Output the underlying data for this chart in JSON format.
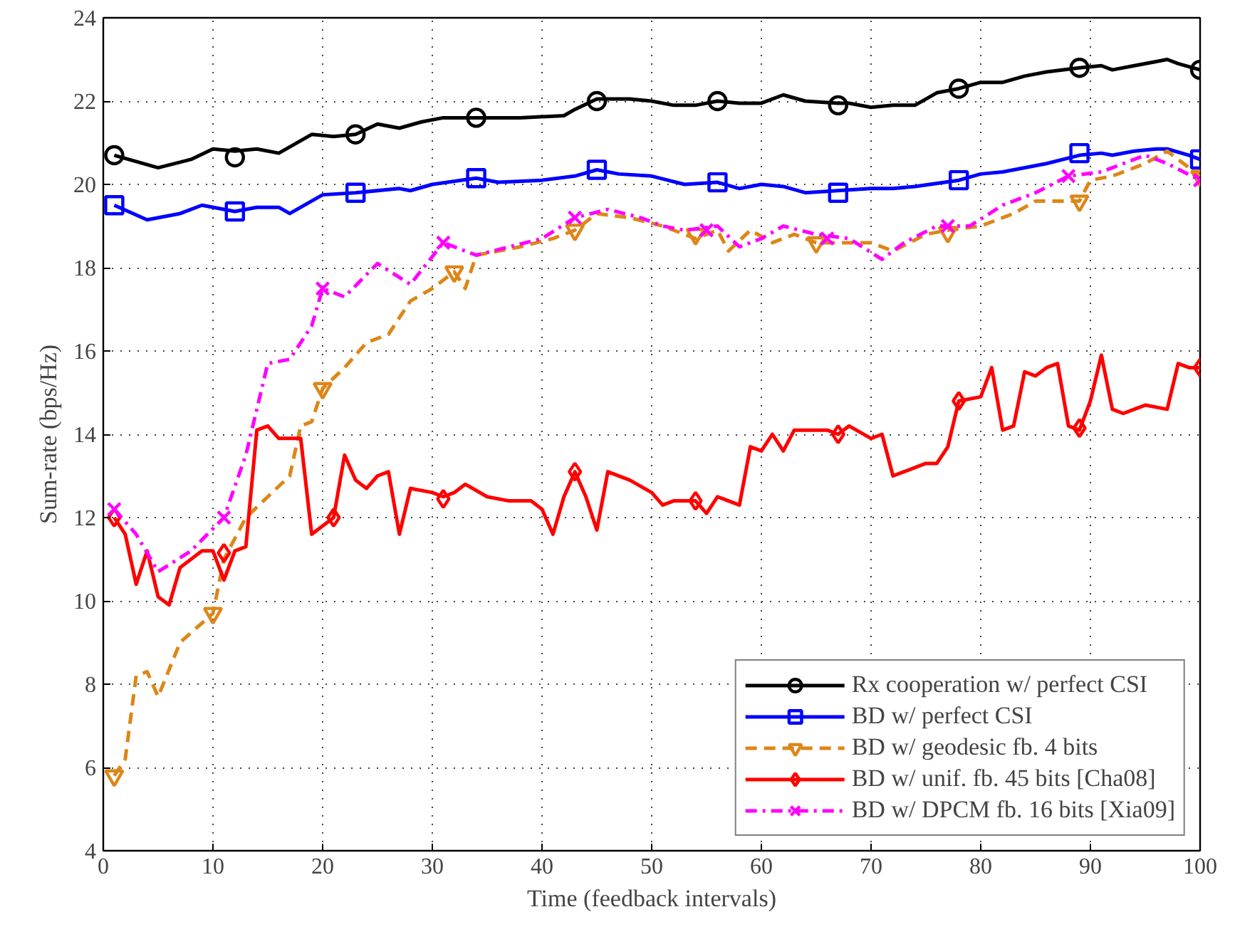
{
  "chart_data": {
    "type": "line",
    "xlabel": "Time (feedback intervals)",
    "ylabel": "Sum-rate (bps/Hz)",
    "xlim": [
      0,
      100
    ],
    "ylim": [
      4,
      24
    ],
    "xticks": [
      0,
      10,
      20,
      30,
      40,
      50,
      60,
      70,
      80,
      90,
      100
    ],
    "yticks": [
      4,
      6,
      8,
      10,
      12,
      14,
      16,
      18,
      20,
      22,
      24
    ],
    "grid": true,
    "legend": "bottom right",
    "series": [
      {
        "name": "Rx cooperation w/ perfect CSI",
        "color": "#000000",
        "line_style": "solid",
        "x": [
          1,
          5,
          8,
          10,
          12,
          14,
          16,
          19,
          21,
          23,
          25,
          27,
          29,
          31,
          34,
          38,
          42,
          43,
          45,
          48,
          50,
          52,
          54,
          56,
          58,
          60,
          62,
          64,
          67,
          68,
          70,
          72,
          74,
          76,
          78,
          80,
          82,
          84,
          86,
          89,
          91,
          92,
          94,
          96,
          97,
          98,
          100
        ],
        "values": [
          20.7,
          20.4,
          20.6,
          20.85,
          20.8,
          20.85,
          20.75,
          21.2,
          21.15,
          21.2,
          21.45,
          21.35,
          21.5,
          21.6,
          21.6,
          21.6,
          21.65,
          21.8,
          22.05,
          22.05,
          22.0,
          21.9,
          21.9,
          22.0,
          21.95,
          21.95,
          22.15,
          22.0,
          21.95,
          21.95,
          21.85,
          21.9,
          21.9,
          22.2,
          22.3,
          22.45,
          22.45,
          22.6,
          22.7,
          22.8,
          22.85,
          22.75,
          22.85,
          22.95,
          23.0,
          22.9,
          22.75
        ]
      },
      {
        "type": "scatter",
        "color": "#000000",
        "marker": "circle",
        "x": [
          1,
          12,
          23,
          34,
          45,
          56,
          67,
          78,
          89,
          100
        ],
        "values": [
          20.7,
          20.65,
          21.2,
          21.6,
          22.0,
          22.0,
          21.9,
          22.3,
          22.8,
          22.75
        ]
      },
      {
        "name": "BD w/ perfect CSI",
        "color": "#0000ff",
        "line_style": "solid",
        "x": [
          1,
          4,
          7,
          9,
          12,
          14,
          16,
          17,
          20,
          23,
          27,
          28,
          30,
          34,
          36,
          40,
          43,
          45,
          47,
          50,
          53,
          56,
          58,
          60,
          62,
          64,
          67,
          70,
          72,
          74,
          78,
          80,
          82,
          86,
          89,
          91,
          92,
          94,
          96,
          97,
          99,
          100
        ],
        "values": [
          19.5,
          19.15,
          19.3,
          19.5,
          19.35,
          19.45,
          19.45,
          19.3,
          19.75,
          19.8,
          19.9,
          19.85,
          20.0,
          20.15,
          20.05,
          20.1,
          20.2,
          20.35,
          20.25,
          20.2,
          20.0,
          20.05,
          19.9,
          20.0,
          19.95,
          19.8,
          19.85,
          19.9,
          19.9,
          19.95,
          20.1,
          20.25,
          20.3,
          20.5,
          20.7,
          20.75,
          20.7,
          20.8,
          20.85,
          20.85,
          20.7,
          20.6
        ]
      },
      {
        "type": "scatter",
        "color": "#0000ff",
        "marker": "square",
        "x": [
          1,
          12,
          23,
          34,
          45,
          56,
          67,
          78,
          89,
          100
        ],
        "values": [
          19.5,
          19.35,
          19.8,
          20.15,
          20.35,
          20.05,
          19.8,
          20.1,
          20.75,
          20.6
        ]
      },
      {
        "name": "BD w/ geodesic fb. 4 bits",
        "color": "#dd8618",
        "line_style": "dashed",
        "x": [
          1,
          2,
          3,
          4,
          5,
          7,
          10,
          11,
          13,
          15,
          17,
          18,
          19,
          20,
          22,
          24,
          26,
          28,
          30,
          32,
          33,
          34,
          38,
          41,
          43,
          45,
          48,
          51,
          54,
          56,
          57,
          59,
          61,
          63,
          65,
          68,
          70,
          72,
          75,
          77,
          80,
          83,
          85,
          89,
          90,
          92,
          95,
          97,
          100
        ],
        "values": [
          5.8,
          6.2,
          8.2,
          8.3,
          7.7,
          9.0,
          9.7,
          11.0,
          12.0,
          12.5,
          13.0,
          14.2,
          14.3,
          15.1,
          15.6,
          16.2,
          16.4,
          17.2,
          17.5,
          17.9,
          17.5,
          18.3,
          18.5,
          18.7,
          18.9,
          19.3,
          19.2,
          19.0,
          18.7,
          18.9,
          18.4,
          18.9,
          18.6,
          18.8,
          18.6,
          18.6,
          18.6,
          18.4,
          18.8,
          18.9,
          19.0,
          19.3,
          19.6,
          19.6,
          20.1,
          20.2,
          20.5,
          20.8,
          20.2
        ]
      },
      {
        "type": "scatter",
        "color": "#dd8618",
        "marker": "triangle",
        "x": [
          1,
          10,
          20,
          32,
          43,
          54,
          65,
          77,
          89,
          100
        ],
        "values": [
          5.8,
          9.7,
          15.1,
          17.9,
          18.9,
          18.8,
          18.6,
          18.85,
          19.6,
          20.2
        ]
      },
      {
        "name": "BD w/ unif. fb. 45 bits [Cha08]",
        "color": "#ff0000",
        "line_style": "solid",
        "x": [
          1,
          2,
          3,
          4,
          5,
          6,
          7,
          9,
          10,
          11,
          12,
          13,
          14,
          15,
          16,
          18,
          19,
          21,
          22,
          23,
          24,
          25,
          26,
          27,
          28,
          30,
          31,
          32,
          33,
          35,
          37,
          39,
          40,
          41,
          42,
          43,
          44,
          45,
          46,
          48,
          50,
          51,
          52,
          54,
          55,
          56,
          58,
          59,
          60,
          61,
          62,
          63,
          65,
          66,
          67,
          68,
          70,
          71,
          72,
          73,
          75,
          76,
          77,
          78,
          80,
          81,
          82,
          83,
          84,
          85,
          86,
          87,
          88,
          89,
          90,
          91,
          92,
          93,
          94,
          95,
          97,
          98,
          99,
          100
        ],
        "values": [
          12.0,
          11.6,
          10.4,
          11.2,
          10.1,
          9.9,
          10.8,
          11.2,
          11.2,
          10.5,
          11.2,
          11.3,
          14.1,
          14.2,
          13.9,
          13.9,
          11.6,
          12.0,
          13.5,
          12.9,
          12.7,
          13.0,
          13.1,
          11.6,
          12.7,
          12.6,
          12.5,
          12.6,
          12.8,
          12.5,
          12.4,
          12.4,
          12.2,
          11.6,
          12.5,
          13.1,
          12.5,
          11.7,
          13.1,
          12.9,
          12.6,
          12.3,
          12.4,
          12.4,
          12.1,
          12.5,
          12.3,
          13.7,
          13.6,
          14.0,
          13.6,
          14.1,
          14.1,
          14.1,
          14.0,
          14.2,
          13.9,
          14.0,
          13.0,
          13.1,
          13.3,
          13.3,
          13.7,
          14.8,
          14.9,
          15.6,
          14.1,
          14.2,
          15.5,
          15.4,
          15.6,
          15.7,
          14.2,
          14.1,
          14.8,
          15.9,
          14.6,
          14.5,
          14.6,
          14.7,
          14.6,
          15.7,
          15.6,
          15.6
        ]
      },
      {
        "type": "scatter",
        "color": "#ff0000",
        "marker": "diamond",
        "x": [
          1,
          11,
          21,
          31,
          43,
          54,
          67,
          78,
          89,
          100
        ],
        "values": [
          12.0,
          11.15,
          12.0,
          12.45,
          13.1,
          12.4,
          14.0,
          14.8,
          14.15,
          15.6
        ]
      },
      {
        "name": "BD w/ DPCM fb. 16 bits [Xia09]",
        "color": "#ff00ff",
        "line_style": "dashdot",
        "x": [
          1,
          3,
          5,
          8,
          11,
          13,
          15,
          17,
          19,
          20,
          22,
          25,
          28,
          31,
          34,
          37,
          40,
          43,
          46,
          49,
          51,
          53,
          56,
          58,
          60,
          62,
          65,
          68,
          71,
          73,
          76,
          79,
          82,
          85,
          88,
          91,
          95,
          97,
          100
        ],
        "values": [
          12.2,
          11.6,
          10.7,
          11.2,
          12.0,
          13.5,
          15.7,
          15.8,
          16.6,
          17.5,
          17.3,
          18.1,
          17.6,
          18.6,
          18.3,
          18.5,
          18.7,
          19.2,
          19.4,
          19.2,
          19.0,
          18.9,
          19.0,
          18.5,
          18.7,
          19.0,
          18.8,
          18.7,
          18.2,
          18.6,
          19.0,
          19.0,
          19.5,
          19.8,
          20.2,
          20.3,
          20.7,
          20.5,
          20.1
        ]
      },
      {
        "type": "scatter",
        "color": "#ff00ff",
        "marker": "cross",
        "x": [
          1,
          11,
          20,
          31,
          43,
          55,
          66,
          77,
          88,
          100
        ],
        "values": [
          12.2,
          12.0,
          17.5,
          18.6,
          19.2,
          18.9,
          18.7,
          19.0,
          20.2,
          20.1
        ]
      }
    ]
  }
}
